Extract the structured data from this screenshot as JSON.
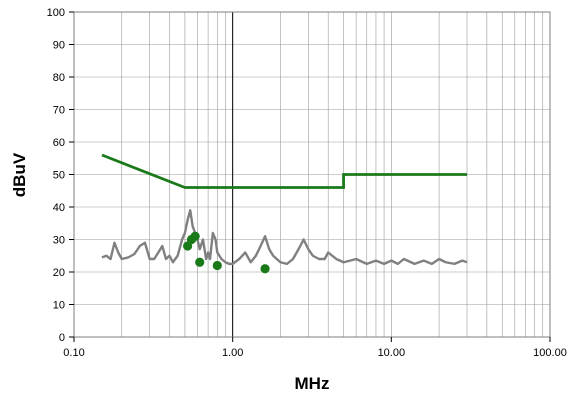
{
  "chart_data": {
    "type": "line",
    "title": "",
    "xlabel": "MHz",
    "ylabel": "dBuV",
    "x_scale": "log",
    "xlim": [
      0.1,
      100
    ],
    "ylim": [
      0,
      100
    ],
    "x_ticks": [
      "0.10",
      "1.00",
      "10.00",
      "100.00"
    ],
    "y_ticks": [
      "0",
      "10",
      "20",
      "30",
      "40",
      "50",
      "60",
      "70",
      "80",
      "90",
      "100"
    ],
    "grid": true,
    "legend": "none",
    "series": [
      {
        "kind": "limit-line",
        "color": "#1a7a1a",
        "points": [
          [
            0.15,
            56
          ],
          [
            0.5,
            46
          ],
          [
            5,
            46
          ],
          [
            5,
            50
          ],
          [
            30,
            50
          ]
        ]
      },
      {
        "kind": "measured-trace",
        "color": "#808080",
        "points": [
          [
            0.15,
            24.5
          ],
          [
            0.16,
            25
          ],
          [
            0.17,
            24
          ],
          [
            0.18,
            29
          ],
          [
            0.19,
            26
          ],
          [
            0.2,
            24
          ],
          [
            0.22,
            24.5
          ],
          [
            0.24,
            25.5
          ],
          [
            0.26,
            28
          ],
          [
            0.28,
            29
          ],
          [
            0.3,
            24
          ],
          [
            0.32,
            24
          ],
          [
            0.34,
            26
          ],
          [
            0.36,
            28
          ],
          [
            0.38,
            24
          ],
          [
            0.4,
            25
          ],
          [
            0.42,
            23
          ],
          [
            0.45,
            25
          ],
          [
            0.48,
            30
          ],
          [
            0.5,
            32
          ],
          [
            0.52,
            36
          ],
          [
            0.54,
            39
          ],
          [
            0.56,
            34
          ],
          [
            0.58,
            32
          ],
          [
            0.6,
            30
          ],
          [
            0.62,
            27
          ],
          [
            0.65,
            30
          ],
          [
            0.68,
            24
          ],
          [
            0.7,
            26
          ],
          [
            0.72,
            24
          ],
          [
            0.75,
            32
          ],
          [
            0.78,
            30
          ],
          [
            0.8,
            26
          ],
          [
            0.85,
            24
          ],
          [
            0.9,
            23
          ],
          [
            0.95,
            22.5
          ],
          [
            1.0,
            22.5
          ],
          [
            1.1,
            24
          ],
          [
            1.2,
            26
          ],
          [
            1.3,
            23
          ],
          [
            1.4,
            25
          ],
          [
            1.5,
            28
          ],
          [
            1.6,
            31
          ],
          [
            1.7,
            27
          ],
          [
            1.8,
            25
          ],
          [
            2.0,
            23
          ],
          [
            2.2,
            22.5
          ],
          [
            2.4,
            24
          ],
          [
            2.6,
            27
          ],
          [
            2.8,
            30
          ],
          [
            3.0,
            27
          ],
          [
            3.2,
            25
          ],
          [
            3.5,
            24
          ],
          [
            3.8,
            24
          ],
          [
            4.0,
            26
          ],
          [
            4.5,
            24
          ],
          [
            5.0,
            23
          ],
          [
            5.5,
            23.5
          ],
          [
            6.0,
            24
          ],
          [
            7.0,
            22.5
          ],
          [
            8.0,
            23.5
          ],
          [
            9.0,
            22.5
          ],
          [
            10.0,
            23.5
          ],
          [
            11.0,
            22.5
          ],
          [
            12.0,
            24
          ],
          [
            14.0,
            22.5
          ],
          [
            16.0,
            23.5
          ],
          [
            18.0,
            22.5
          ],
          [
            20.0,
            24
          ],
          [
            22.0,
            23
          ],
          [
            25.0,
            22.5
          ],
          [
            28.0,
            23.5
          ],
          [
            30.0,
            23
          ]
        ]
      },
      {
        "kind": "measured-points",
        "color": "#1a7a1a",
        "points": [
          [
            0.52,
            28
          ],
          [
            0.55,
            30
          ],
          [
            0.58,
            31
          ],
          [
            0.62,
            23
          ],
          [
            0.8,
            22
          ],
          [
            1.6,
            21
          ]
        ]
      }
    ]
  }
}
